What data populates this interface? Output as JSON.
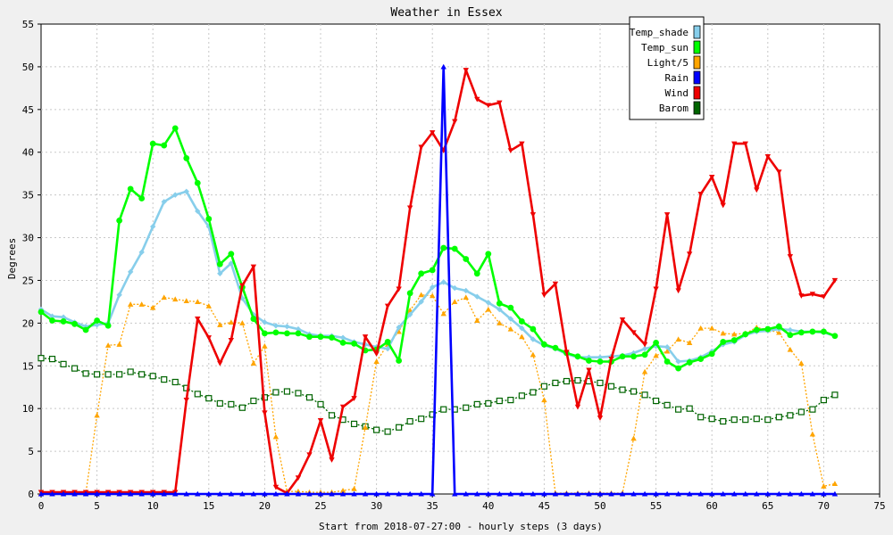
{
  "chart_data": {
    "type": "line",
    "title": "Weather in Essex",
    "xlabel": "Start from 2018-07-27:00 - hourly steps (3 days)",
    "ylabel": "Degrees",
    "xlim": [
      0,
      75
    ],
    "ylim": [
      0,
      55
    ],
    "x_ticks": [
      0,
      5,
      10,
      15,
      20,
      25,
      30,
      35,
      40,
      45,
      50,
      55,
      60,
      65,
      70,
      75
    ],
    "y_ticks": [
      0,
      5,
      10,
      15,
      20,
      25,
      30,
      35,
      40,
      45,
      50,
      55
    ],
    "grid": true,
    "legend_position": "top-right",
    "x": [
      0,
      1,
      2,
      3,
      4,
      5,
      6,
      7,
      8,
      9,
      10,
      11,
      12,
      13,
      14,
      15,
      16,
      17,
      18,
      19,
      20,
      21,
      22,
      23,
      24,
      25,
      26,
      27,
      28,
      29,
      30,
      31,
      32,
      33,
      34,
      35,
      36,
      37,
      38,
      39,
      40,
      41,
      42,
      43,
      44,
      45,
      46,
      47,
      48,
      49,
      50,
      51,
      52,
      53,
      54,
      55,
      56,
      57,
      58,
      59,
      60,
      61,
      62,
      63,
      64,
      65,
      66,
      67,
      68,
      69,
      70,
      71
    ],
    "series": [
      {
        "name": "Temp_shade",
        "color": "#87ceeb",
        "marker": "diamond",
        "dashed": false,
        "values": [
          21.6,
          20.8,
          20.7,
          20.1,
          19.6,
          19.8,
          20.0,
          23.3,
          26.0,
          28.3,
          31.3,
          34.2,
          35.0,
          35.4,
          33.1,
          31.3,
          25.8,
          27.0,
          22.9,
          21.0,
          20.1,
          19.7,
          19.6,
          19.3,
          18.7,
          18.5,
          18.5,
          18.3,
          17.8,
          17.5,
          17.2,
          17.0,
          19.5,
          21.0,
          22.5,
          24.2,
          24.8,
          24.1,
          23.8,
          23.1,
          22.4,
          21.6,
          20.5,
          19.4,
          18.1,
          17.4,
          17.0,
          16.4,
          16.0,
          16.0,
          16.0,
          16.1,
          16.2,
          16.5,
          17.0,
          17.3,
          17.2,
          15.5,
          15.6,
          16.0,
          16.7,
          17.5,
          17.8,
          18.6,
          19.0,
          19.1,
          19.3,
          19.2,
          19.0,
          19.0,
          18.9,
          18.5
        ]
      },
      {
        "name": "Temp_sun",
        "color": "#00ff00",
        "marker": "circle",
        "dashed": false,
        "values": [
          21.3,
          20.3,
          20.2,
          19.9,
          19.2,
          20.3,
          19.7,
          32.0,
          35.7,
          34.6,
          41.0,
          40.8,
          42.8,
          39.3,
          36.4,
          32.2,
          26.9,
          28.1,
          24.2,
          20.5,
          18.8,
          18.9,
          18.8,
          18.8,
          18.4,
          18.4,
          18.3,
          17.7,
          17.6,
          16.8,
          16.9,
          17.8,
          15.6,
          23.5,
          25.8,
          26.2,
          28.8,
          28.7,
          27.5,
          25.8,
          28.1,
          22.3,
          21.8,
          20.2,
          19.3,
          17.5,
          17.1,
          16.5,
          16.1,
          15.6,
          15.5,
          15.5,
          16.1,
          16.1,
          16.3,
          17.7,
          15.5,
          14.7,
          15.4,
          15.8,
          16.4,
          17.8,
          18.0,
          18.7,
          19.2,
          19.3,
          19.6,
          18.6,
          18.9,
          19.0,
          19.0,
          18.5
        ]
      },
      {
        "name": "Light/5",
        "color": "#ffa500",
        "marker": "triangle",
        "dashed": true,
        "values": [
          0.1,
          0.1,
          0.1,
          0.1,
          0.1,
          9.2,
          17.4,
          17.5,
          22.2,
          22.2,
          21.8,
          23.0,
          22.8,
          22.6,
          22.5,
          22.0,
          19.8,
          20.1,
          20.0,
          15.3,
          17.3,
          6.7,
          0.3,
          0.3,
          0.2,
          0.2,
          0.2,
          0.4,
          0.6,
          7.8,
          15.5,
          17.5,
          19.0,
          21.5,
          23.3,
          23.2,
          21.1,
          22.5,
          23.0,
          20.3,
          21.6,
          20.0,
          19.3,
          18.4,
          16.3,
          11.0,
          0.1,
          0.1,
          0.1,
          0.1,
          0.1,
          0.1,
          0.1,
          6.5,
          14.3,
          16.2,
          16.7,
          18.1,
          17.7,
          19.4,
          19.4,
          18.8,
          18.7,
          18.8,
          19.5,
          19.2,
          18.9,
          16.9,
          15.3,
          7.0,
          0.9,
          1.2
        ]
      },
      {
        "name": "Rain",
        "color": "#0000ff",
        "marker": "triangle",
        "dashed": false,
        "values": [
          0,
          0,
          0,
          0,
          0,
          0,
          0,
          0,
          0,
          0,
          0,
          0,
          0,
          0,
          0,
          0,
          0,
          0,
          0,
          0,
          0,
          0,
          0,
          0,
          0,
          0,
          0,
          0,
          0,
          0,
          0,
          0,
          0,
          0,
          0,
          0,
          50,
          0,
          0,
          0,
          0,
          0,
          0,
          0,
          0,
          0,
          0,
          0,
          0,
          0,
          0,
          0,
          0,
          0,
          0,
          0,
          0,
          0,
          0,
          0,
          0,
          0,
          0,
          0,
          0,
          0,
          0,
          0,
          0,
          0,
          0,
          0
        ]
      },
      {
        "name": "Wind",
        "color": "#ee0000",
        "marker": "triangle-down",
        "dashed": false,
        "values": [
          0.2,
          0.2,
          0.2,
          0.2,
          0.2,
          0.2,
          0.2,
          0.2,
          0.2,
          0.2,
          0.2,
          0.2,
          0.2,
          11.0,
          20.5,
          18.3,
          15.3,
          18.0,
          24.4,
          26.6,
          9.5,
          0.8,
          0.1,
          1.9,
          4.6,
          8.6,
          4.0,
          10.2,
          11.2,
          18.4,
          16.4,
          22.0,
          24.0,
          33.5,
          40.6,
          42.3,
          40.2,
          43.6,
          49.6,
          46.2,
          45.5,
          45.8,
          40.2,
          41.0,
          32.7,
          23.3,
          24.6,
          16.6,
          10.2,
          14.5,
          8.9,
          15.8,
          20.4,
          18.9,
          17.5,
          24.0,
          32.7,
          23.8,
          28.1,
          35.1,
          37.1,
          33.8,
          41.0,
          41.0,
          35.6,
          39.5,
          37.7,
          27.8,
          23.2,
          23.4,
          23.1,
          25.0
        ]
      },
      {
        "name": "Barom",
        "color": "#006400",
        "marker": "square",
        "dashed": true,
        "values": [
          15.9,
          15.8,
          15.2,
          14.7,
          14.1,
          14.0,
          14.0,
          14.0,
          14.3,
          14.0,
          13.8,
          13.4,
          13.1,
          12.4,
          11.7,
          11.2,
          10.6,
          10.5,
          10.1,
          10.9,
          11.3,
          11.9,
          12.0,
          11.8,
          11.3,
          10.5,
          9.2,
          8.7,
          8.2,
          7.9,
          7.5,
          7.3,
          7.8,
          8.5,
          8.8,
          9.3,
          9.9,
          9.9,
          10.1,
          10.5,
          10.6,
          10.9,
          11.0,
          11.5,
          11.9,
          12.6,
          13.0,
          13.2,
          13.3,
          13.2,
          13.0,
          12.6,
          12.2,
          12.0,
          11.6,
          10.9,
          10.4,
          9.9,
          10.0,
          9.0,
          8.8,
          8.5,
          8.7,
          8.7,
          8.8,
          8.7,
          9.0,
          9.2,
          9.6,
          9.9,
          11.0,
          11.6
        ]
      }
    ]
  }
}
